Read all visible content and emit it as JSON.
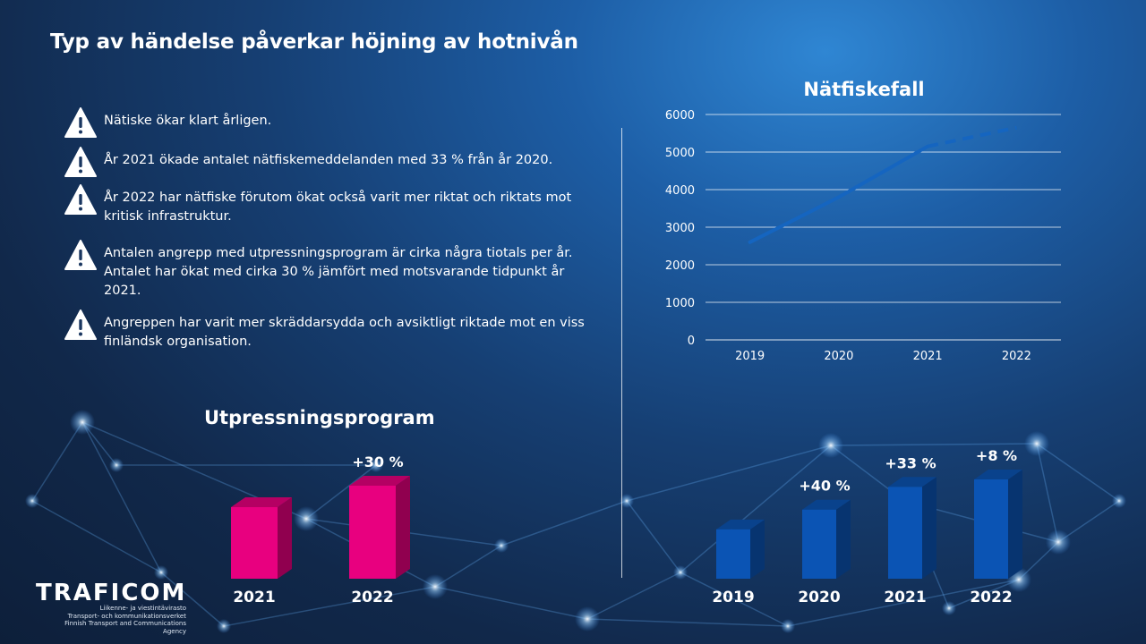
{
  "title": "Typ av händelse påverkar höjning av hotnivån",
  "bullets": [
    {
      "icon": "warning-icon",
      "text": "Nätiske ökar klart årligen."
    },
    {
      "icon": "warning-icon",
      "text": "År 2021 ökade antalet nätfiskemeddelanden med 33 % från år 2020."
    },
    {
      "icon": "warning-icon",
      "text": "År 2022 har nätfiske förutom ökat också varit mer riktat och riktats mot kritisk infrastruktur."
    },
    {
      "icon": "warning-icon",
      "text": "Antalen angrepp med utpressningsprogram är cirka några tiotals per år. Antalet har ökat med cirka 30 % jämfört med motsvarande tidpunkt år 2021."
    },
    {
      "icon": "warning-icon",
      "text": "Angreppen har varit mer skräddarsydda och avsiktligt riktade mot en viss finländsk organisation."
    }
  ],
  "logo": {
    "brand": "TRAFICOM",
    "line1": "Liikenne- ja viestintävirasto",
    "line2": "Transport- och kommunikationsverket",
    "line3": "Finnish Transport and Communications Agency"
  },
  "colors": {
    "magenta": "#e8007f",
    "blue": "#0b54b4",
    "line": "#1565c0"
  },
  "chart_data": [
    {
      "type": "line",
      "title": "Nätfiskefall",
      "x": [
        "2019",
        "2020",
        "2021",
        "2022"
      ],
      "series": [
        {
          "values": [
            2600,
            3800,
            5150,
            5650
          ],
          "dashed_from_index": 2
        }
      ],
      "ylim": [
        0,
        6000
      ],
      "yticks": [
        0,
        1000,
        2000,
        3000,
        4000,
        5000,
        6000
      ],
      "grid": true
    },
    {
      "type": "bar",
      "title": "Utpressningsprogram",
      "categories": [
        "2021",
        "2022"
      ],
      "values": [
        100,
        130
      ],
      "labels": [
        "",
        "+30 %"
      ]
    },
    {
      "type": "bar",
      "title": "",
      "categories": [
        "2019",
        "2020",
        "2021",
        "2022"
      ],
      "values": [
        2600,
        3640,
        4840,
        5230
      ],
      "labels": [
        "",
        "+40 %",
        "+33 %",
        "+8 %"
      ]
    }
  ]
}
